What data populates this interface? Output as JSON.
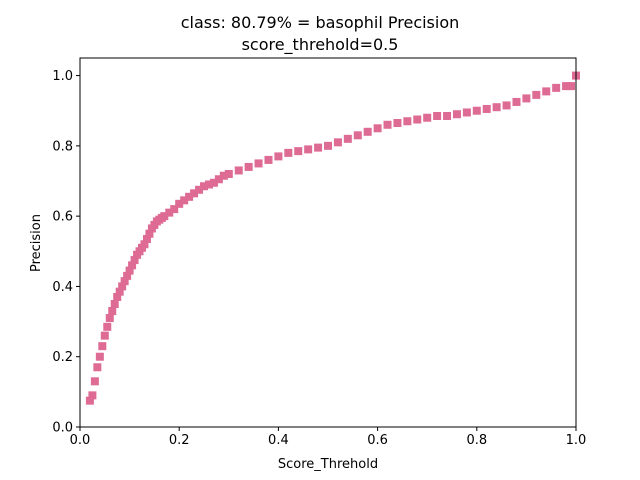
{
  "chart_data": {
    "type": "scatter",
    "title": "class: 80.79% = basophil Precision",
    "subtitle": "score_threhold=0.5",
    "xlabel": "Score_Threhold",
    "ylabel": "Precision",
    "xlim": [
      0.0,
      1.0
    ],
    "ylim": [
      0.0,
      1.05
    ],
    "x_ticks": [
      "0.0",
      "0.2",
      "0.4",
      "0.6",
      "0.8",
      "1.0"
    ],
    "y_ticks": [
      "0.0",
      "0.2",
      "0.4",
      "0.6",
      "0.8",
      "1.0"
    ],
    "grid": false,
    "legend": "none",
    "series_color": "#de6b93",
    "marker": "square",
    "points": {
      "x": [
        0.02,
        0.025,
        0.03,
        0.035,
        0.04,
        0.045,
        0.05,
        0.055,
        0.06,
        0.065,
        0.07,
        0.075,
        0.08,
        0.085,
        0.09,
        0.095,
        0.1,
        0.105,
        0.11,
        0.115,
        0.12,
        0.125,
        0.13,
        0.135,
        0.14,
        0.145,
        0.15,
        0.155,
        0.16,
        0.165,
        0.17,
        0.18,
        0.19,
        0.2,
        0.21,
        0.22,
        0.23,
        0.24,
        0.25,
        0.26,
        0.27,
        0.28,
        0.29,
        0.3,
        0.32,
        0.34,
        0.36,
        0.38,
        0.4,
        0.42,
        0.44,
        0.46,
        0.48,
        0.5,
        0.52,
        0.54,
        0.56,
        0.58,
        0.6,
        0.62,
        0.64,
        0.66,
        0.68,
        0.7,
        0.72,
        0.74,
        0.76,
        0.78,
        0.8,
        0.82,
        0.84,
        0.86,
        0.88,
        0.9,
        0.92,
        0.94,
        0.96,
        0.98,
        0.99,
        1.0
      ],
      "y": [
        0.075,
        0.09,
        0.13,
        0.17,
        0.2,
        0.23,
        0.26,
        0.285,
        0.31,
        0.33,
        0.35,
        0.37,
        0.385,
        0.4,
        0.415,
        0.43,
        0.445,
        0.46,
        0.475,
        0.49,
        0.5,
        0.51,
        0.52,
        0.535,
        0.55,
        0.565,
        0.575,
        0.585,
        0.59,
        0.595,
        0.6,
        0.61,
        0.62,
        0.635,
        0.645,
        0.655,
        0.665,
        0.675,
        0.685,
        0.69,
        0.695,
        0.705,
        0.715,
        0.72,
        0.73,
        0.74,
        0.75,
        0.76,
        0.77,
        0.78,
        0.785,
        0.79,
        0.795,
        0.8,
        0.81,
        0.82,
        0.83,
        0.84,
        0.85,
        0.86,
        0.865,
        0.87,
        0.875,
        0.88,
        0.885,
        0.885,
        0.89,
        0.895,
        0.9,
        0.905,
        0.91,
        0.915,
        0.925,
        0.935,
        0.945,
        0.955,
        0.965,
        0.97,
        0.97,
        1.0
      ]
    }
  }
}
